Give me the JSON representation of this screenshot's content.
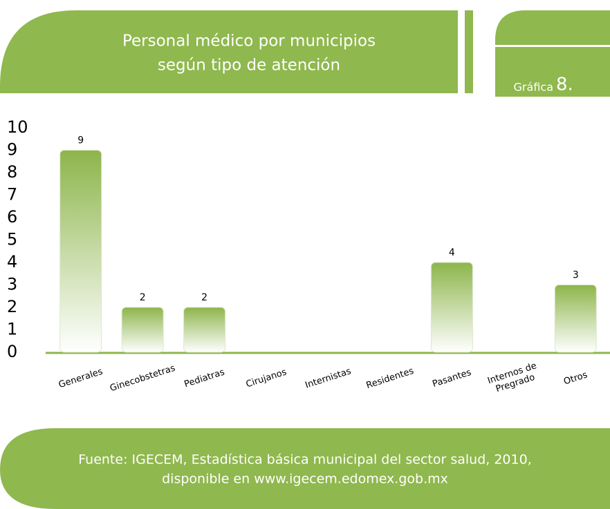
{
  "chart_data": {
    "type": "bar",
    "title": [
      "Personal médico por municipios",
      "según tipo  de atención"
    ],
    "badge": {
      "label": "Gráfica",
      "number": "8."
    },
    "categories": [
      [
        "Generales"
      ],
      [
        "Ginecobstetras"
      ],
      [
        "Pediatras"
      ],
      [
        "Cirujanos"
      ],
      [
        "Internistas"
      ],
      [
        "Residentes"
      ],
      [
        "Pasantes"
      ],
      [
        "Internos de",
        "Pregrado"
      ],
      [
        "Otros"
      ]
    ],
    "values": [
      9,
      2,
      2,
      0,
      0,
      0,
      4,
      0,
      3
    ],
    "color": "#8db54b",
    "ylim": [
      0,
      10
    ],
    "yticks": [
      0,
      1,
      2,
      3,
      4,
      5,
      6,
      7,
      8,
      9,
      10
    ],
    "grid": false,
    "source": [
      "Fuente: IGECEM, Estadística básica municipal del sector salud, 2010,",
      "disponible en www.igecem.edomex.gob.mx"
    ]
  }
}
